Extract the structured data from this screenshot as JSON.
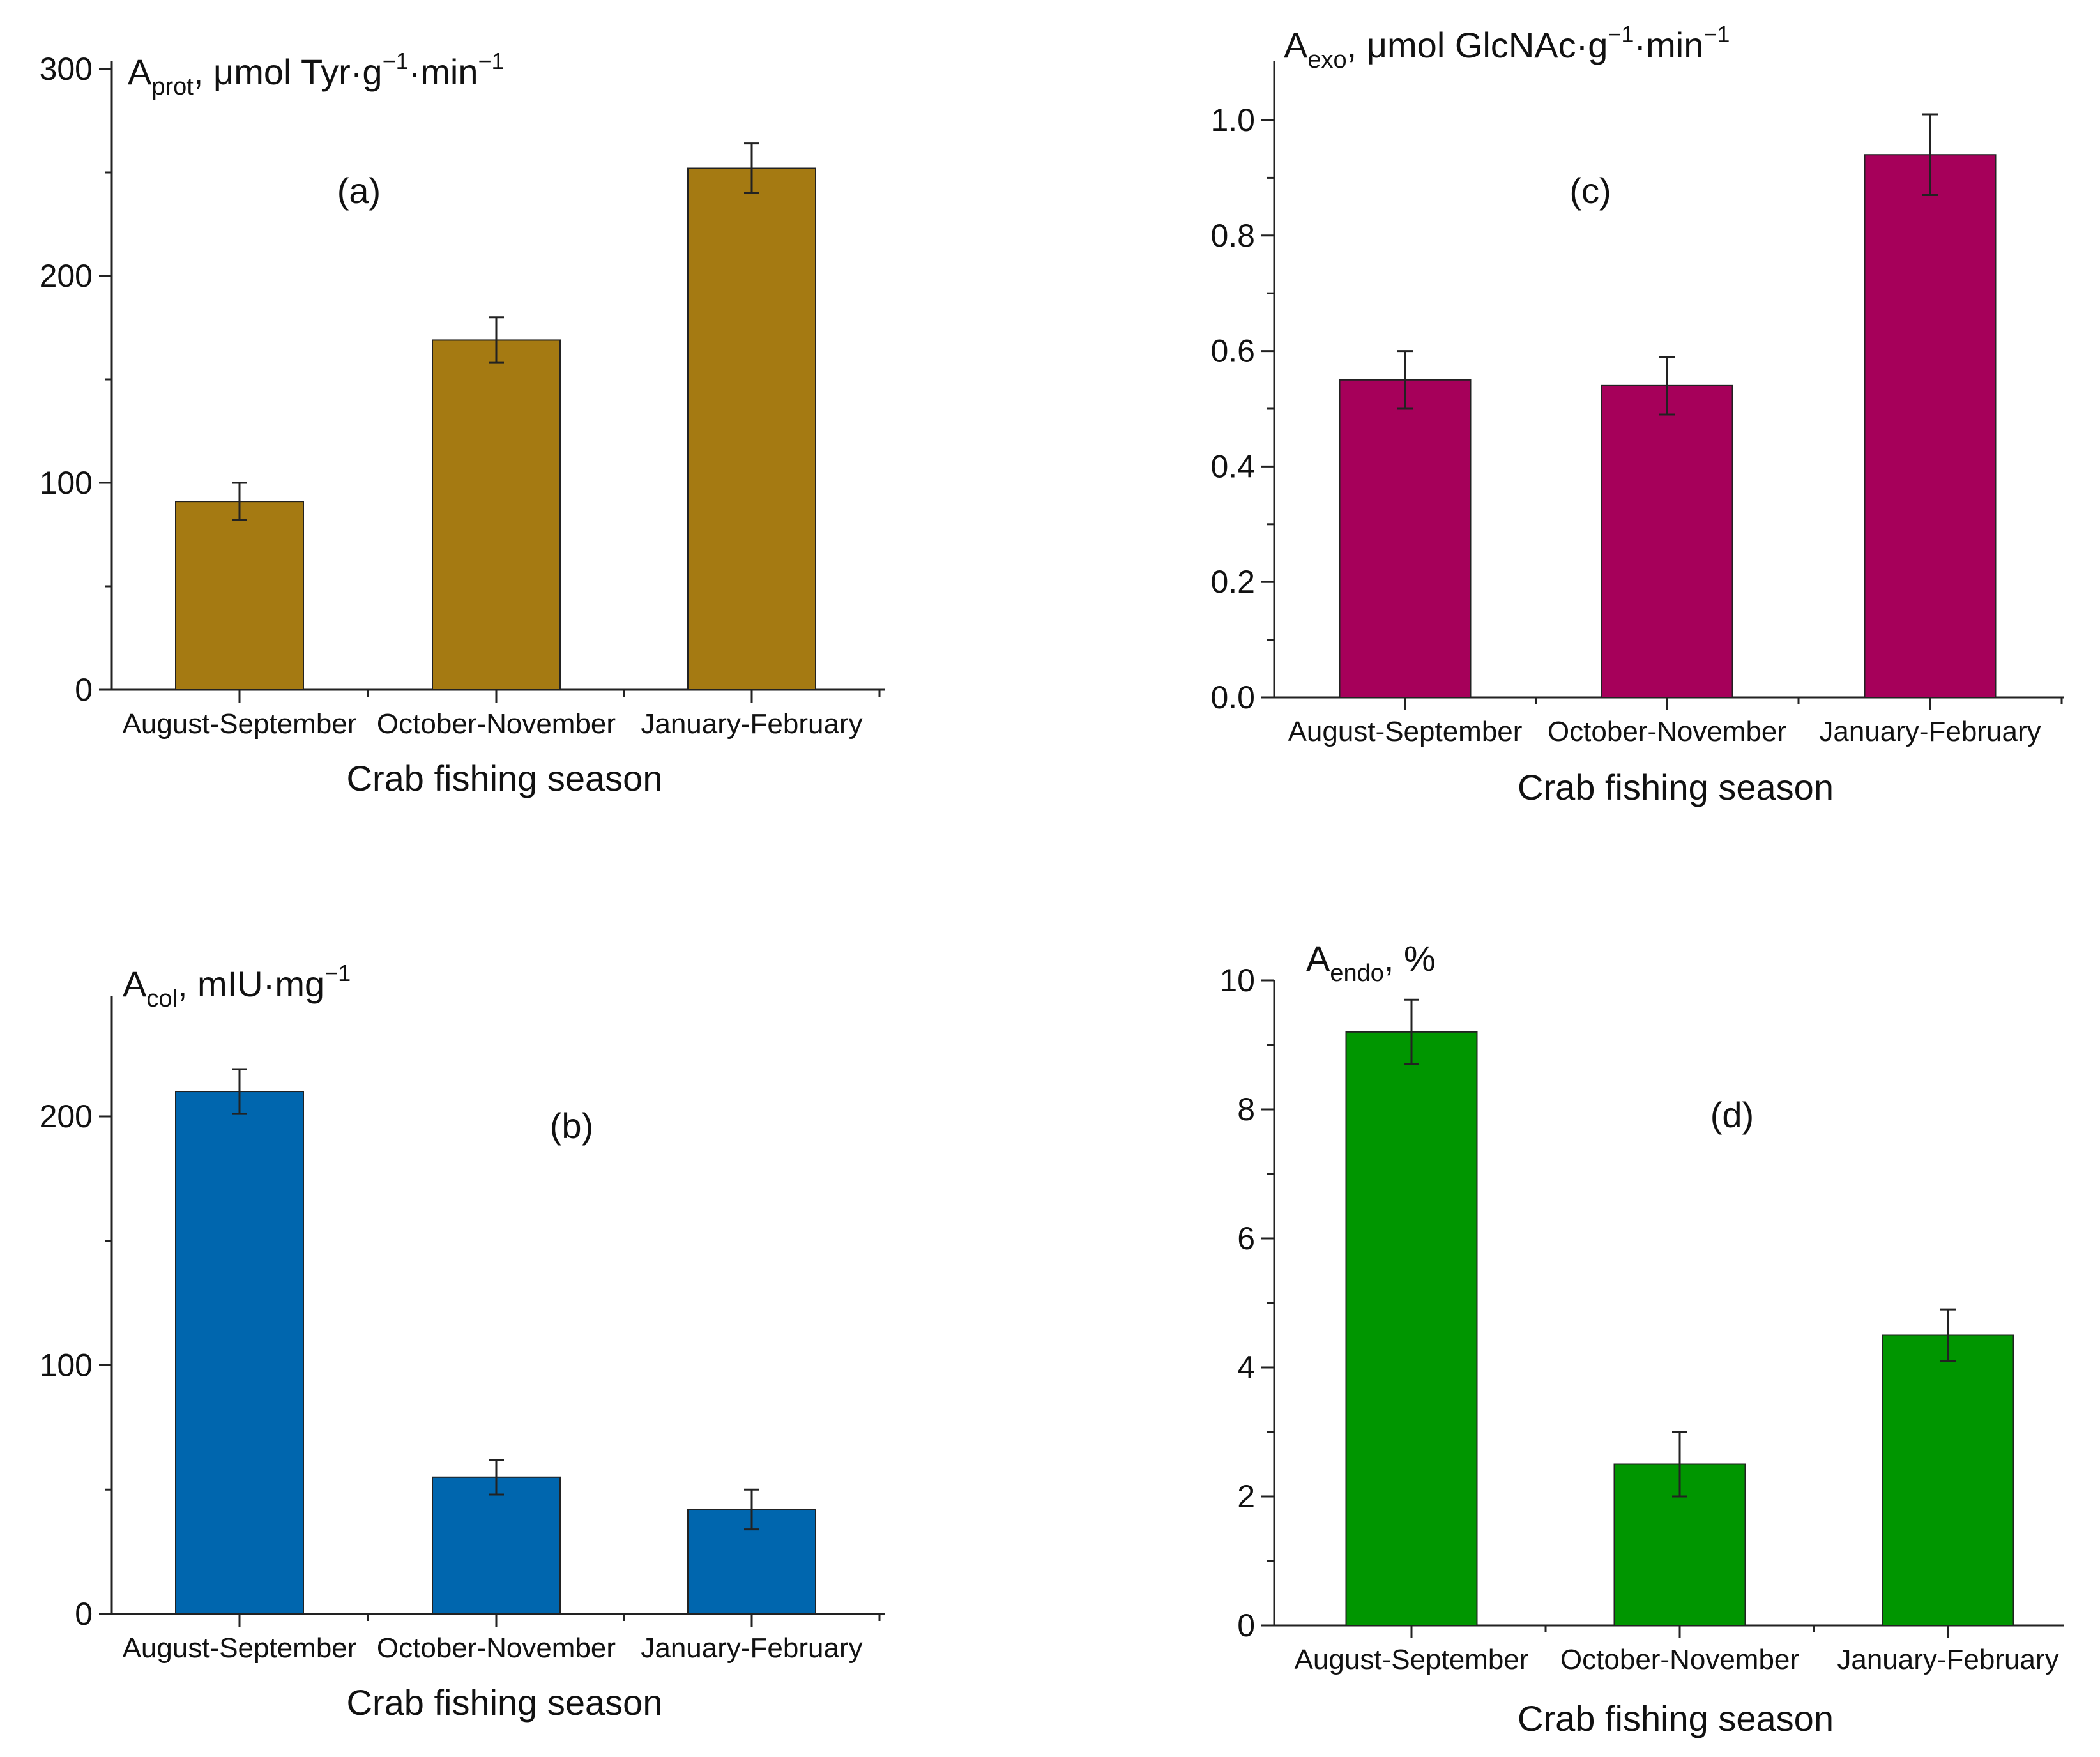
{
  "chart_data": [
    {
      "id": "a",
      "type": "bar",
      "panel_label": "(a)",
      "ylabel": {
        "base": "A",
        "sub": "prot",
        "text": ", μmol Tyr·g",
        "sup1": "−1",
        "text2": "·min",
        "sup2": "−1"
      },
      "xlabel": "Crab fishing season",
      "categories": [
        "August-September",
        "October-November",
        "January-February"
      ],
      "values": [
        91,
        169,
        252
      ],
      "errors": [
        9,
        11,
        12
      ],
      "ylim": [
        0,
        300
      ],
      "yticks": [
        0,
        100,
        200,
        300
      ],
      "ytick_labels": [
        "0",
        "100",
        "200",
        "300"
      ],
      "color": "#A57A12"
    },
    {
      "id": "c",
      "type": "bar",
      "panel_label": "(c)",
      "ylabel": {
        "base": "A",
        "sub": "exo",
        "text": ", μmol GlcNAc·g",
        "sup1": "−1",
        "text2": "·min",
        "sup2": "−1"
      },
      "xlabel": "Crab fishing season",
      "categories": [
        "August-September",
        "October-November",
        "January-February"
      ],
      "values": [
        0.55,
        0.54,
        0.94
      ],
      "errors": [
        0.05,
        0.05,
        0.07
      ],
      "ylim": [
        0,
        1.0
      ],
      "yticks": [
        0.0,
        0.2,
        0.4,
        0.6,
        0.8,
        1.0
      ],
      "ytick_labels": [
        "0.0",
        "0.2",
        "0.4",
        "0.6",
        "0.8",
        "1.0"
      ],
      "color": "#A6005A"
    },
    {
      "id": "b",
      "type": "bar",
      "panel_label": "(b)",
      "ylabel": {
        "base": "A",
        "sub": "col",
        "text": ", mIU·mg",
        "sup1": "−1",
        "text2": "",
        "sup2": ""
      },
      "xlabel": "Crab fishing season",
      "categories": [
        "August-September",
        "October-November",
        "January-February"
      ],
      "values": [
        210,
        55,
        42
      ],
      "errors": [
        9,
        7,
        8
      ],
      "ylim": [
        0,
        200
      ],
      "yticks": [
        0,
        100,
        200
      ],
      "ytick_labels": [
        "0",
        "100",
        "200"
      ],
      "color": "#0066AE"
    },
    {
      "id": "d",
      "type": "bar",
      "panel_label": "(d)",
      "ylabel": {
        "base": "A",
        "sub": "endo",
        "text": ", %",
        "sup1": "",
        "text2": "",
        "sup2": ""
      },
      "xlabel": "Crab fishing season",
      "categories": [
        "August-September",
        "October-November",
        "January-February"
      ],
      "values": [
        9.2,
        2.5,
        4.5
      ],
      "errors": [
        0.5,
        0.5,
        0.4
      ],
      "ylim": [
        0,
        10
      ],
      "yticks": [
        0,
        2,
        4,
        6,
        8,
        10
      ],
      "ytick_labels": [
        "0",
        "2",
        "4",
        "6",
        "8",
        "10"
      ],
      "color": "#009600"
    }
  ]
}
